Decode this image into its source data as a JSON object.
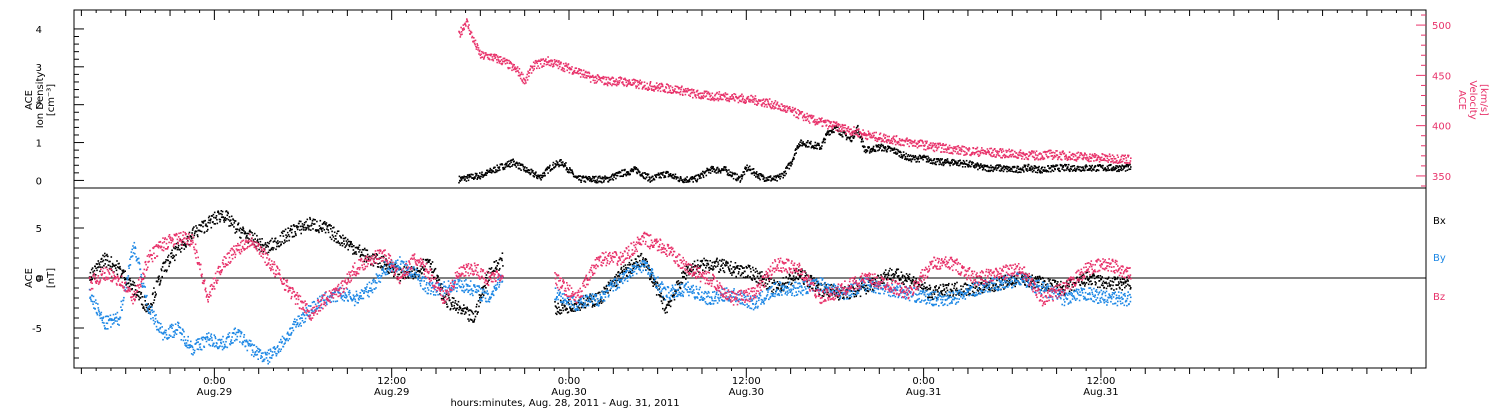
{
  "colors": {
    "black": "#000000",
    "pink": "#e8336b",
    "blue": "#1e88e5"
  },
  "x_axis": {
    "label": "hours:minutes, Aug. 28, 2011 - Aug. 31, 2011",
    "ticks": [
      {
        "hour": 24,
        "time": "0:00",
        "date": "Aug.29"
      },
      {
        "hour": 36,
        "time": "12:00",
        "date": "Aug.29"
      },
      {
        "hour": 48,
        "time": "0:00",
        "date": "Aug.30"
      },
      {
        "hour": 60,
        "time": "12:00",
        "date": "Aug.30"
      },
      {
        "hour": 72,
        "time": "0:00",
        "date": "Aug.31"
      },
      {
        "hour": 84,
        "time": "12:00",
        "date": "Aug.31"
      }
    ]
  },
  "chart_data": [
    {
      "type": "scatter",
      "title": "",
      "ylabel_left": [
        "ACE",
        "Ion Density",
        "[cm⁻³]"
      ],
      "ylabel_right": [
        "ACE",
        "Velocity",
        "[km/s]"
      ],
      "xlim_hours_from_aug28_0000": [
        14.5,
        106
      ],
      "ylim_left": [
        -0.2,
        4.5
      ],
      "ylim_right": [
        338,
        515
      ],
      "left_ticks": [
        0,
        1,
        2,
        3,
        4
      ],
      "right_ticks": [
        350,
        400,
        450,
        500
      ],
      "series": [
        {
          "role": "density",
          "color_key": "black",
          "axis": "left",
          "x": [
            40.5,
            42.0,
            43.5,
            44.2,
            45.0,
            46.0,
            46.8,
            47.5,
            48.5,
            49.5,
            50.5,
            51.5,
            52.5,
            53.5,
            54.5,
            55.5,
            56.5,
            57.5,
            58.5,
            59.5,
            60.0,
            61.0,
            62.0,
            62.5,
            63.0,
            63.5,
            64.0,
            65.0,
            65.5,
            66.0,
            67.0,
            67.5,
            68.0,
            69.0,
            70.0,
            71.0,
            72.0,
            73.0,
            74.0,
            75.0,
            76.0,
            77.0,
            78.0,
            79.0,
            80.0,
            81.0,
            82.0,
            83.0,
            84.0,
            85.0,
            86.0
          ],
          "y": [
            0.05,
            0.15,
            0.4,
            0.5,
            0.3,
            0.1,
            0.4,
            0.5,
            0.05,
            0.05,
            0.05,
            0.2,
            0.3,
            0.05,
            0.2,
            0.05,
            0.05,
            0.3,
            0.3,
            0.05,
            0.35,
            0.1,
            0.05,
            0.2,
            0.5,
            1.0,
            1.0,
            0.9,
            1.3,
            1.4,
            1.1,
            1.4,
            0.8,
            0.9,
            0.8,
            0.6,
            0.6,
            0.5,
            0.5,
            0.45,
            0.35,
            0.35,
            0.3,
            0.35,
            0.3,
            0.35,
            0.35,
            0.35,
            0.35,
            0.35,
            0.35
          ]
        },
        {
          "role": "velocity",
          "color_key": "pink",
          "axis": "right",
          "x": [
            40.5,
            41.0,
            41.5,
            42.0,
            42.5,
            43.5,
            44.5,
            45.0,
            45.5,
            46.5,
            47.5,
            48.5,
            49.5,
            50.5,
            51.5,
            52.5,
            53.5,
            54.5,
            55.5,
            56.5,
            57.5,
            58.5,
            59.5,
            60.5,
            61.5,
            62.5,
            63.5,
            64.5,
            65.5,
            66.5,
            67.5,
            68.5,
            69.5,
            70.5,
            71.5,
            72.5,
            73.5,
            74.5,
            75.5,
            76.5,
            77.5,
            78.5,
            79.5,
            80.5,
            81.5,
            82.5,
            83.5,
            84.5,
            85.5,
            86.0
          ],
          "y": [
            490,
            505,
            485,
            470,
            470,
            465,
            455,
            445,
            460,
            465,
            460,
            455,
            448,
            445,
            445,
            442,
            440,
            438,
            436,
            432,
            430,
            430,
            428,
            426,
            423,
            418,
            412,
            406,
            402,
            398,
            394,
            390,
            388,
            385,
            383,
            380,
            378,
            376,
            375,
            374,
            373,
            372,
            371,
            372,
            371,
            370,
            369,
            368,
            368,
            367
          ]
        }
      ]
    },
    {
      "type": "scatter",
      "title": "",
      "ylabel_left": [
        "ACE",
        "B",
        "[nT]"
      ],
      "xlim_hours_from_aug28_0000": [
        14.5,
        106
      ],
      "ylim": [
        -9,
        9
      ],
      "left_ticks": [
        -5,
        0,
        5
      ],
      "legend_position": "right",
      "legend": [
        {
          "label": "Bx",
          "color_key": "black"
        },
        {
          "label": "By",
          "color_key": "blue"
        },
        {
          "label": "Bz",
          "color_key": "pink"
        }
      ],
      "series": [
        {
          "name": "Bx",
          "color_key": "black",
          "x": [
            15.5,
            16.5,
            17.5,
            18.5,
            19.5,
            20.5,
            21.5,
            22.5,
            23.5,
            24.0,
            24.5,
            25.5,
            26.5,
            27.5,
            28.5,
            29.5,
            30.5,
            31.5,
            32.5,
            33.5,
            34.5,
            35.5,
            36.5,
            37.5,
            38.5,
            39.5,
            40.5,
            41.5,
            42.5,
            43.5,
            47.0,
            48.5,
            50.0,
            51.5,
            53.0,
            54.5,
            56.0,
            57.5,
            59.0,
            60.5,
            62.0,
            63.5,
            65.0,
            66.5,
            68.0,
            69.5,
            71.0,
            72.5,
            74.0,
            75.5,
            77.0,
            78.5,
            80.0,
            81.5,
            83.0,
            84.5,
            86.0
          ],
          "y": [
            0.0,
            2.0,
            1.0,
            -1.0,
            -3.0,
            1.0,
            3.0,
            4.5,
            5.5,
            6.0,
            6.5,
            5.0,
            4.0,
            3.0,
            4.0,
            5.0,
            5.5,
            5.0,
            4.0,
            3.0,
            2.0,
            1.5,
            0.5,
            0.5,
            2.0,
            -2.0,
            -3.0,
            -4.0,
            0.5,
            2.0,
            -3.0,
            -2.5,
            -2.0,
            0.5,
            2.0,
            -3.0,
            1.0,
            1.5,
            1.0,
            0.5,
            -1.0,
            0.5,
            -1.0,
            -1.5,
            -1.0,
            0.5,
            0.0,
            -1.5,
            -1.0,
            -1.0,
            -0.5,
            0.0,
            -0.5,
            -1.0,
            0.0,
            -0.5,
            -0.5
          ]
        },
        {
          "name": "By",
          "color_key": "blue",
          "x": [
            15.5,
            16.5,
            17.5,
            18.5,
            19.5,
            20.5,
            21.5,
            22.5,
            23.5,
            24.5,
            25.5,
            26.5,
            27.5,
            28.5,
            29.5,
            30.5,
            31.5,
            32.5,
            33.5,
            34.5,
            35.5,
            36.5,
            37.5,
            38.5,
            39.5,
            40.5,
            41.5,
            42.5,
            43.5,
            47.0,
            48.5,
            50.0,
            51.5,
            53.0,
            54.5,
            56.0,
            57.5,
            59.0,
            60.5,
            62.0,
            63.5,
            65.0,
            66.5,
            68.0,
            69.5,
            71.0,
            72.5,
            74.0,
            75.5,
            77.0,
            78.5,
            80.0,
            81.5,
            83.0,
            84.5,
            86.0
          ],
          "y": [
            -1.5,
            -4.5,
            -4.0,
            3.5,
            -3.0,
            -5.5,
            -5.0,
            -7.0,
            -6.0,
            -6.5,
            -5.5,
            -7.0,
            -8.0,
            -6.5,
            -4.5,
            -3.0,
            -2.0,
            -1.5,
            -2.0,
            -1.0,
            1.0,
            1.5,
            0.5,
            -1.0,
            -1.0,
            -0.5,
            -1.0,
            -2.0,
            0.5,
            -1.5,
            -2.5,
            -2.0,
            0.0,
            1.5,
            -1.5,
            -1.0,
            -2.0,
            -1.5,
            -2.5,
            -1.0,
            -1.0,
            -0.5,
            -1.5,
            -0.5,
            -1.0,
            -1.5,
            -2.0,
            -2.0,
            -1.0,
            -0.5,
            0.0,
            -1.0,
            -2.0,
            -1.5,
            -2.0,
            -2.0
          ]
        },
        {
          "name": "Bz",
          "color_key": "pink",
          "x": [
            15.5,
            16.5,
            17.5,
            18.5,
            19.5,
            20.5,
            21.5,
            22.5,
            23.5,
            24.5,
            25.5,
            26.5,
            27.5,
            28.5,
            29.5,
            30.5,
            31.5,
            32.5,
            33.5,
            34.5,
            35.5,
            36.5,
            37.5,
            38.5,
            39.5,
            40.5,
            41.5,
            42.5,
            43.5,
            47.0,
            48.5,
            50.0,
            51.5,
            53.0,
            54.5,
            56.0,
            57.5,
            59.0,
            60.5,
            62.0,
            63.5,
            65.0,
            66.5,
            68.0,
            69.5,
            71.0,
            72.5,
            74.0,
            75.5,
            77.0,
            78.5,
            80.0,
            81.5,
            83.0,
            84.5,
            86.0
          ],
          "y": [
            -0.5,
            0.5,
            0.0,
            -2.0,
            2.0,
            3.5,
            4.0,
            4.0,
            -2.0,
            1.5,
            3.0,
            4.0,
            2.0,
            0.0,
            -2.0,
            -3.5,
            -2.0,
            -1.0,
            1.0,
            2.0,
            2.5,
            0.0,
            2.0,
            0.5,
            -2.0,
            0.5,
            1.0,
            0.0,
            0.5,
            0.0,
            -2.0,
            2.0,
            2.0,
            4.0,
            3.0,
            1.0,
            0.0,
            -2.0,
            -1.5,
            1.5,
            1.0,
            -2.0,
            -1.0,
            0.0,
            -0.5,
            -1.5,
            1.5,
            1.5,
            0.0,
            0.5,
            1.0,
            -2.0,
            -1.0,
            1.0,
            1.5,
            0.5
          ]
        }
      ]
    }
  ]
}
